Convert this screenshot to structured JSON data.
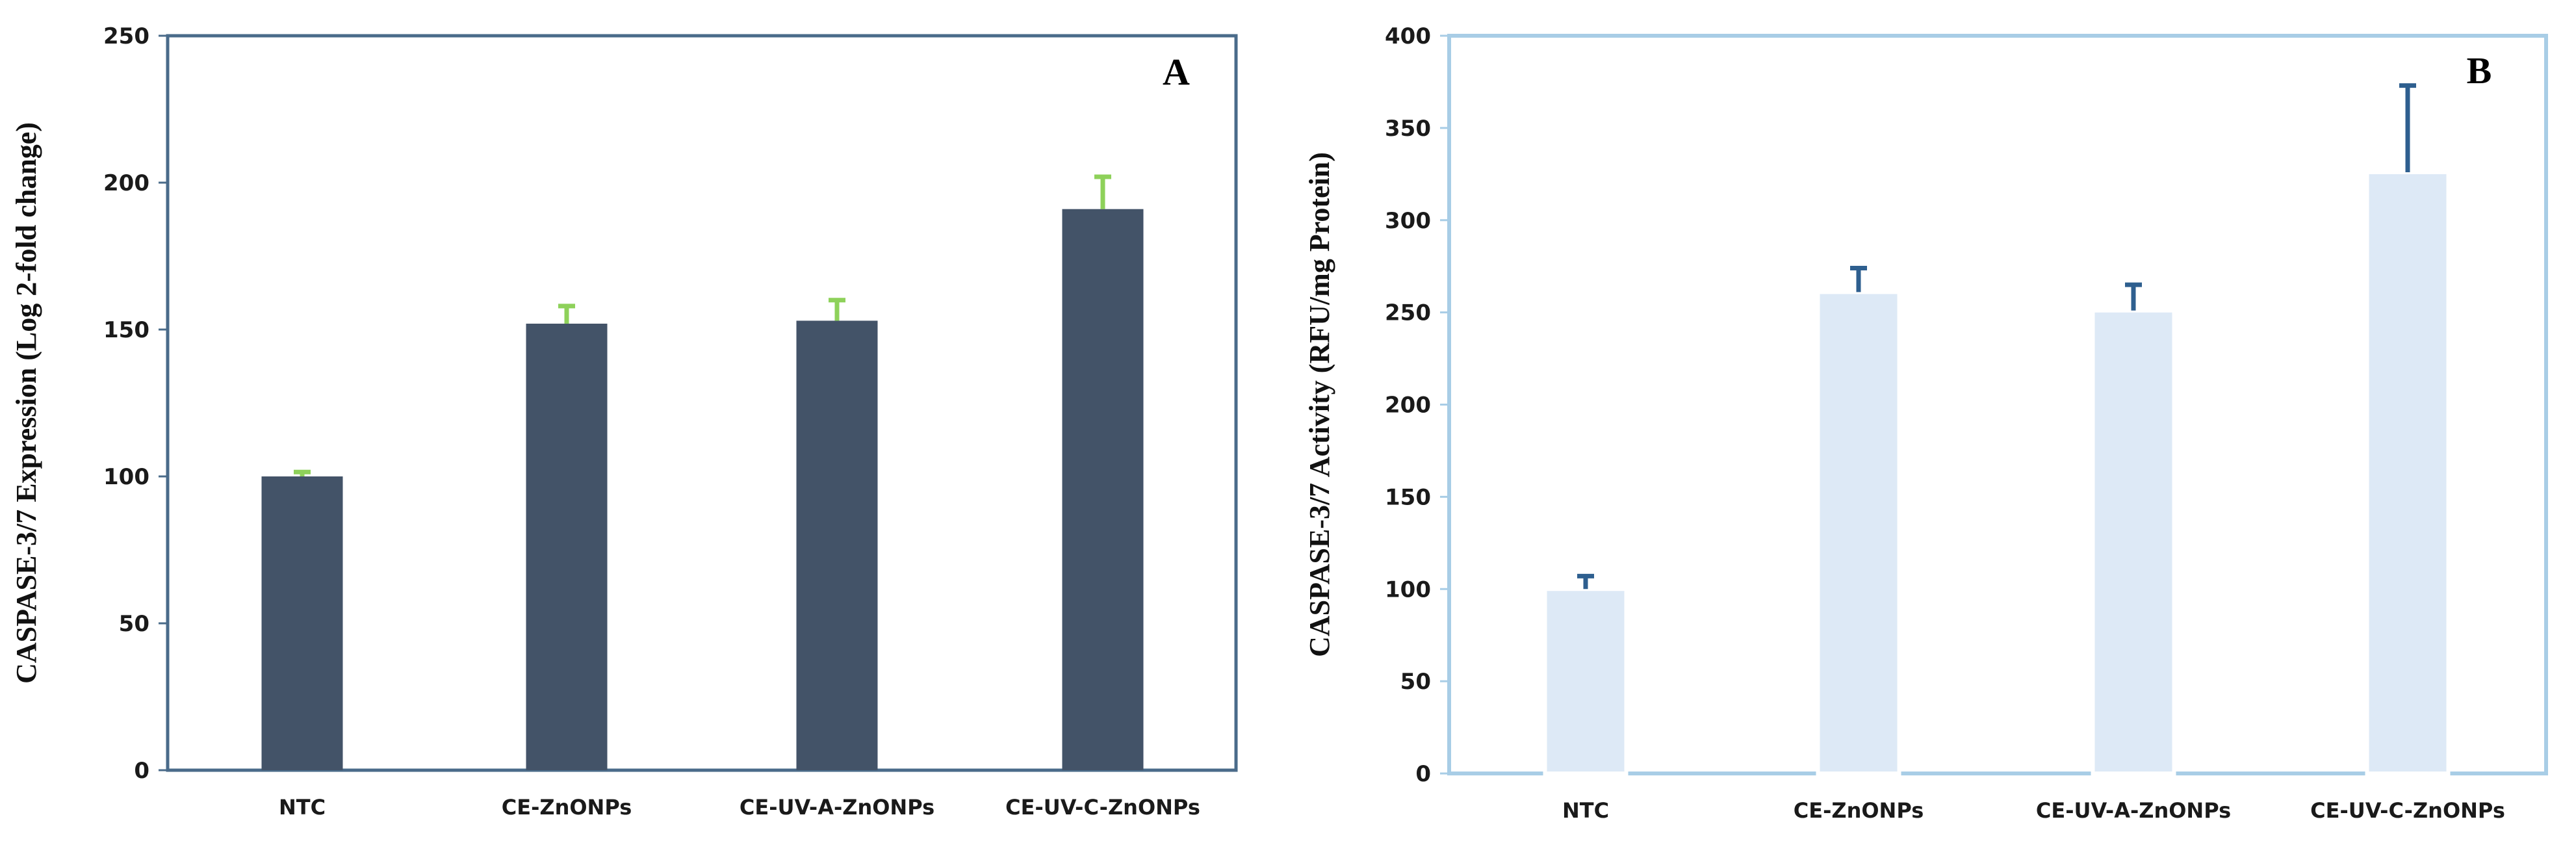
{
  "chart_data": [
    {
      "type": "bar",
      "panel_label": "A",
      "ylabel": "CASPASE-3/7 Expression (Log 2-fold change)",
      "xlabel": "",
      "categories": [
        "NTC",
        "CE-ZnONPs",
        "CE-UV-A-ZnONPs",
        "CE-UV-C-ZnONPs"
      ],
      "values": [
        100,
        152,
        153,
        191
      ],
      "errors": [
        1.5,
        6,
        7,
        11
      ],
      "ylim": [
        0,
        250
      ],
      "yticks": [
        0,
        50,
        100,
        150,
        200,
        250
      ],
      "colors": {
        "bar": "#435368",
        "error": "#8ed15a",
        "frame": "#4a6b8a"
      },
      "grid": false,
      "legend": "none"
    },
    {
      "type": "bar",
      "panel_label": "B",
      "ylabel": "CASPASE-3/7 Activity (RFU/mg Protein)",
      "xlabel": "",
      "categories": [
        "NTC",
        "CE-ZnONPs",
        "CE-UV-A-ZnONPs",
        "CE-UV-C-ZnONPs"
      ],
      "values": [
        100,
        261,
        251,
        326
      ],
      "errors": [
        7,
        13,
        14,
        47
      ],
      "ylim": [
        0,
        400
      ],
      "yticks": [
        0,
        50,
        100,
        150,
        200,
        250,
        300,
        350,
        400
      ],
      "colors": {
        "bar": "#dde9f6",
        "error": "#2e5f8f",
        "frame": "#a8cde6"
      },
      "grid": false,
      "legend": "none"
    }
  ]
}
